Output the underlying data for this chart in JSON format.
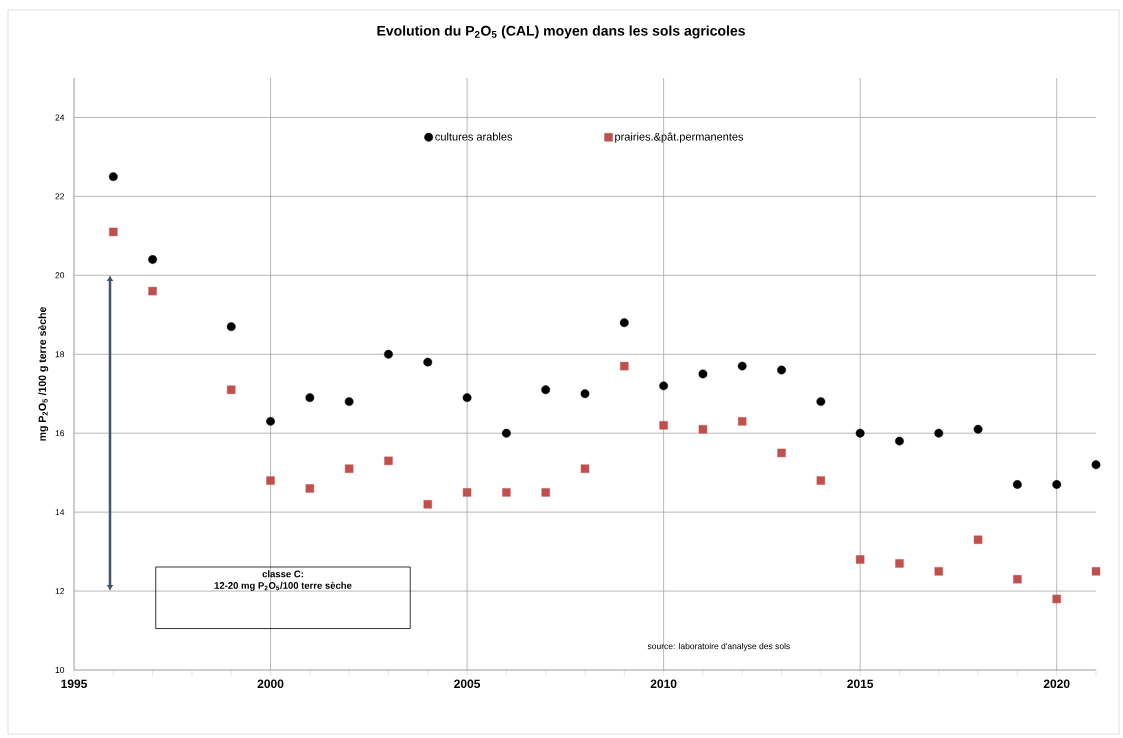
{
  "chart_data": {
    "type": "scatter",
    "title": "Evolution du P$_{2}$O$_{5}$ (CAL) moyen dans les sols agricoles",
    "ylabel": "mg P$_{2}$O$_{5}$ /100 g terre sèche",
    "x": [
      1996,
      1997,
      1999,
      2000,
      2001,
      2002,
      2003,
      2004,
      2005,
      2006,
      2007,
      2008,
      2009,
      2010,
      2011,
      2012,
      2013,
      2014,
      2015,
      2016,
      2017,
      2018,
      2019,
      2020,
      2021
    ],
    "series": [
      {
        "name": "cultures arables",
        "color": "#000000",
        "marker": "circle",
        "values": [
          22.5,
          20.4,
          18.7,
          16.3,
          16.9,
          16.8,
          18.0,
          17.8,
          16.9,
          16.0,
          17.1,
          17.0,
          18.8,
          17.2,
          17.5,
          17.7,
          17.6,
          16.8,
          16.0,
          15.8,
          16.0,
          16.1,
          14.7,
          14.7,
          15.2
        ]
      },
      {
        "name": "prairies.&pât.permanentes",
        "color": "#c0504d",
        "marker": "square",
        "values": [
          21.1,
          19.6,
          17.1,
          14.8,
          14.6,
          15.1,
          15.3,
          14.2,
          14.5,
          14.5,
          14.5,
          15.1,
          17.7,
          16.2,
          16.1,
          16.3,
          15.5,
          14.8,
          12.8,
          12.7,
          12.5,
          13.3,
          12.3,
          11.8,
          12.5
        ]
      }
    ],
    "xlim": [
      1995,
      2021
    ],
    "ylim": [
      10,
      25
    ],
    "xticks": [
      1995,
      {
        "value": 1996,
        "label": null
      },
      {
        "value": 1997,
        "label": null
      },
      {
        "value": 1998,
        "label": null
      },
      {
        "value": 1999,
        "label": null
      },
      2000,
      {
        "value": 2001,
        "label": null
      },
      {
        "value": 2002,
        "label": null
      },
      {
        "value": 2003,
        "label": null
      },
      {
        "value": 2004,
        "label": null
      },
      2005,
      {
        "value": 2006,
        "label": null
      },
      {
        "value": 2007,
        "label": null
      },
      {
        "value": 2008,
        "label": null
      },
      {
        "value": 2009,
        "label": null
      },
      2010,
      {
        "value": 2011,
        "label": null
      },
      {
        "value": 2012,
        "label": null
      },
      {
        "value": 2013,
        "label": null
      },
      {
        "value": 2014,
        "label": null
      },
      2015,
      {
        "value": 2016,
        "label": null
      },
      {
        "value": 2017,
        "label": null
      },
      {
        "value": 2018,
        "label": null
      },
      {
        "value": 2019,
        "label": null
      },
      2020,
      {
        "value": 2021,
        "label": null
      }
    ],
    "yticks": [
      10,
      12,
      14,
      16,
      18,
      20,
      22,
      24
    ],
    "annotations": [
      "classe C:",
      "12-20 mg P$_{2}$O$_{5}$/100 terre sèche",
      "source: laboratoire d'analyse des sols"
    ],
    "grid": true,
    "legend": "top"
  }
}
